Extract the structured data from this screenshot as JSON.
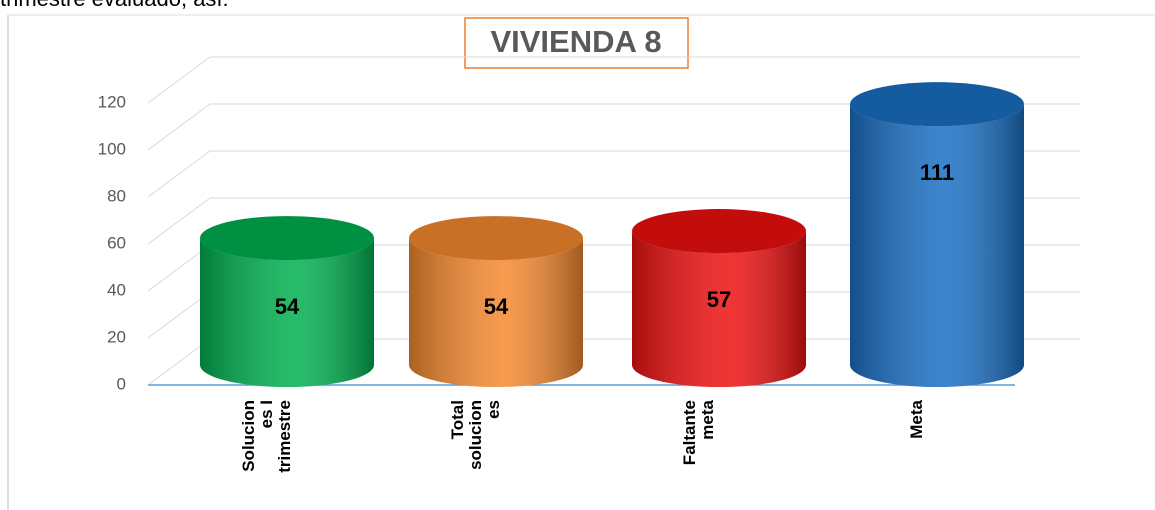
{
  "caption": "trimestre evaluado, así:",
  "chart_data": {
    "type": "cylinder",
    "title": "VIVIENDA 8",
    "categories": [
      "Solucion\nes I\ntrimestre",
      "Total\nsolucion\nes",
      "Faltante\nmeta",
      "Meta"
    ],
    "values": [
      54,
      54,
      57,
      111
    ],
    "colors": [
      "#00b050",
      "#f5892f",
      "#ee1111",
      "#1a6fc4"
    ],
    "ylim": [
      0,
      120
    ],
    "yticks": [
      0,
      20,
      40,
      60,
      80,
      100,
      120
    ],
    "grid": true
  }
}
